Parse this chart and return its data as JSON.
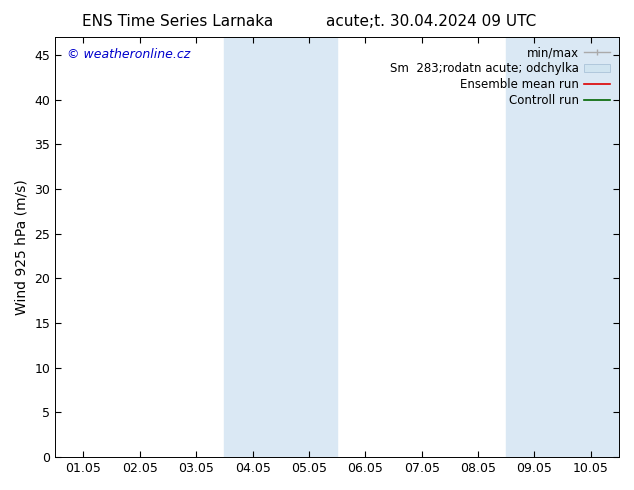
{
  "title_left": "ENS Time Series Larnaka",
  "title_right": "acute;t. 30.04.2024 09 UTC",
  "ylabel": "Wind 925 hPa (m/s)",
  "watermark": "© weatheronline.cz",
  "watermark_color": "#0000cc",
  "xlim_left": 0,
  "xlim_right": 10,
  "ylim_bottom": 0,
  "ylim_top": 47,
  "yticks": [
    0,
    5,
    10,
    15,
    20,
    25,
    30,
    35,
    40,
    45
  ],
  "xtick_labels": [
    "01.05",
    "02.05",
    "03.05",
    "04.05",
    "05.05",
    "06.05",
    "07.05",
    "08.05",
    "09.05",
    "10.05"
  ],
  "xtick_positions": [
    0.5,
    1.5,
    2.5,
    3.5,
    4.5,
    5.5,
    6.5,
    7.5,
    8.5,
    9.5
  ],
  "background_color": "#ffffff",
  "plot_bg_color": "#ffffff",
  "shaded_bands": [
    {
      "x_start": 3.0,
      "x_end": 4.0,
      "color": "#dae8f4"
    },
    {
      "x_start": 4.0,
      "x_end": 5.0,
      "color": "#dae8f4"
    },
    {
      "x_start": 8.0,
      "x_end": 9.0,
      "color": "#dae8f4"
    },
    {
      "x_start": 9.0,
      "x_end": 10.0,
      "color": "#dae8f4"
    }
  ],
  "title_fontsize": 11,
  "axis_label_fontsize": 10,
  "tick_fontsize": 9,
  "watermark_fontsize": 9,
  "legend_fontsize": 8.5
}
